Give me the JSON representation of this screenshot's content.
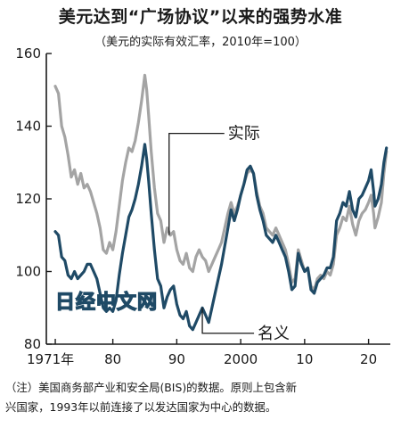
{
  "header": {
    "title": "美元达到“广场协议”以来的强势水准",
    "subtitle": "（美元的实际有效汇率，2010年=100）"
  },
  "watermark": "日经中文网",
  "note": {
    "line1": "（注）美国商务部产业和安全局(BIS)的数据。原则上包含新",
    "line2": "兴国家，1993年以前连接了以发达国家为中心的数据。"
  },
  "colors": {
    "real": "#a4a4a4",
    "nominal": "#1f4a66"
  },
  "chart_data": {
    "type": "line",
    "title": "美元达到“广场协议”以来的强势水准",
    "subtitle": "（美元的实际有效汇率，2010年=100）",
    "ylim": [
      80,
      160
    ],
    "xlim": [
      1971,
      2023
    ],
    "yticks": [
      80,
      100,
      120,
      140,
      160
    ],
    "xticks": [
      {
        "value": 1971,
        "label": "1971年"
      },
      {
        "value": 1980,
        "label": "80"
      },
      {
        "value": 1990,
        "label": "90"
      },
      {
        "value": 2000,
        "label": "2000"
      },
      {
        "value": 2010,
        "label": "10"
      },
      {
        "value": 2020,
        "label": "20"
      }
    ],
    "grid": false,
    "series": [
      {
        "name": "实际",
        "key": "real",
        "points": [
          [
            1971.0,
            151
          ],
          [
            1971.5,
            149
          ],
          [
            1972.0,
            140
          ],
          [
            1972.5,
            137
          ],
          [
            1973.0,
            132
          ],
          [
            1973.5,
            126
          ],
          [
            1974.0,
            128
          ],
          [
            1974.5,
            124
          ],
          [
            1975.0,
            127
          ],
          [
            1975.5,
            123
          ],
          [
            1976.0,
            124
          ],
          [
            1976.5,
            122
          ],
          [
            1977.0,
            119
          ],
          [
            1977.5,
            116
          ],
          [
            1978.0,
            112
          ],
          [
            1978.5,
            106
          ],
          [
            1979.0,
            105
          ],
          [
            1979.5,
            108
          ],
          [
            1980.0,
            106
          ],
          [
            1980.5,
            111
          ],
          [
            1981.0,
            118
          ],
          [
            1981.5,
            125
          ],
          [
            1982.0,
            130
          ],
          [
            1982.5,
            134
          ],
          [
            1983.0,
            133
          ],
          [
            1983.5,
            136
          ],
          [
            1984.0,
            141
          ],
          [
            1984.5,
            147
          ],
          [
            1985.0,
            154
          ],
          [
            1985.3,
            150
          ],
          [
            1985.6,
            143
          ],
          [
            1986.0,
            133
          ],
          [
            1986.5,
            123
          ],
          [
            1987.0,
            116
          ],
          [
            1987.5,
            114
          ],
          [
            1988.0,
            108
          ],
          [
            1988.5,
            112
          ],
          [
            1989.0,
            110
          ],
          [
            1989.5,
            111
          ],
          [
            1990.0,
            106
          ],
          [
            1990.5,
            103
          ],
          [
            1991.0,
            102
          ],
          [
            1991.5,
            105
          ],
          [
            1992.0,
            101
          ],
          [
            1992.5,
            100
          ],
          [
            1993.0,
            104
          ],
          [
            1993.5,
            106
          ],
          [
            1994.0,
            104
          ],
          [
            1994.5,
            103
          ],
          [
            1995.0,
            100
          ],
          [
            1995.5,
            102
          ],
          [
            1996.0,
            104
          ],
          [
            1996.5,
            106
          ],
          [
            1997.0,
            108
          ],
          [
            1997.5,
            112
          ],
          [
            1998.0,
            116
          ],
          [
            1998.5,
            119
          ],
          [
            1999.0,
            116
          ],
          [
            1999.5,
            118
          ],
          [
            2000.0,
            121
          ],
          [
            2000.5,
            124
          ],
          [
            2001.0,
            127
          ],
          [
            2001.5,
            128
          ],
          [
            2002.0,
            127
          ],
          [
            2002.5,
            122
          ],
          [
            2003.0,
            118
          ],
          [
            2003.5,
            116
          ],
          [
            2004.0,
            112
          ],
          [
            2004.5,
            111
          ],
          [
            2005.0,
            110
          ],
          [
            2005.5,
            112
          ],
          [
            2006.0,
            110
          ],
          [
            2006.5,
            108
          ],
          [
            2007.0,
            106
          ],
          [
            2007.5,
            102
          ],
          [
            2008.0,
            97
          ],
          [
            2008.5,
            98
          ],
          [
            2009.0,
            106
          ],
          [
            2009.5,
            103
          ],
          [
            2010.0,
            100
          ],
          [
            2010.5,
            101
          ],
          [
            2011.0,
            96
          ],
          [
            2011.5,
            95
          ],
          [
            2012.0,
            98
          ],
          [
            2012.5,
            99
          ],
          [
            2013.0,
            98
          ],
          [
            2013.5,
            100
          ],
          [
            2014.0,
            99
          ],
          [
            2014.5,
            102
          ],
          [
            2015.0,
            110
          ],
          [
            2015.5,
            112
          ],
          [
            2016.0,
            115
          ],
          [
            2016.5,
            114
          ],
          [
            2017.0,
            118
          ],
          [
            2017.5,
            113
          ],
          [
            2018.0,
            110
          ],
          [
            2018.5,
            114
          ],
          [
            2019.0,
            116
          ],
          [
            2019.5,
            117
          ],
          [
            2020.0,
            119
          ],
          [
            2020.4,
            121
          ],
          [
            2020.8,
            116
          ],
          [
            2021.0,
            112
          ],
          [
            2021.5,
            115
          ],
          [
            2022.0,
            119
          ],
          [
            2022.4,
            127
          ],
          [
            2022.8,
            133
          ]
        ]
      },
      {
        "name": "名义",
        "key": "nominal",
        "points": [
          [
            1971.0,
            111
          ],
          [
            1971.5,
            110
          ],
          [
            1972.0,
            104
          ],
          [
            1972.5,
            103
          ],
          [
            1973.0,
            99
          ],
          [
            1973.5,
            98
          ],
          [
            1974.0,
            100
          ],
          [
            1974.5,
            98
          ],
          [
            1975.0,
            99
          ],
          [
            1975.5,
            100
          ],
          [
            1976.0,
            102
          ],
          [
            1976.5,
            102
          ],
          [
            1977.0,
            100
          ],
          [
            1977.5,
            98
          ],
          [
            1978.0,
            94
          ],
          [
            1978.5,
            90
          ],
          [
            1979.0,
            89
          ],
          [
            1979.5,
            90
          ],
          [
            1980.0,
            89
          ],
          [
            1980.5,
            92
          ],
          [
            1981.0,
            99
          ],
          [
            1981.5,
            105
          ],
          [
            1982.0,
            110
          ],
          [
            1982.5,
            115
          ],
          [
            1983.0,
            117
          ],
          [
            1983.5,
            120
          ],
          [
            1984.0,
            124
          ],
          [
            1984.5,
            129
          ],
          [
            1985.0,
            135
          ],
          [
            1985.3,
            131
          ],
          [
            1985.6,
            125
          ],
          [
            1986.0,
            116
          ],
          [
            1986.5,
            106
          ],
          [
            1987.0,
            98
          ],
          [
            1987.5,
            96
          ],
          [
            1988.0,
            90
          ],
          [
            1988.5,
            93
          ],
          [
            1989.0,
            95
          ],
          [
            1989.5,
            96
          ],
          [
            1990.0,
            91
          ],
          [
            1990.5,
            88
          ],
          [
            1991.0,
            87
          ],
          [
            1991.5,
            89
          ],
          [
            1992.0,
            85
          ],
          [
            1992.5,
            84
          ],
          [
            1993.0,
            86
          ],
          [
            1993.5,
            88
          ],
          [
            1994.0,
            90
          ],
          [
            1994.5,
            88
          ],
          [
            1995.0,
            86
          ],
          [
            1995.5,
            90
          ],
          [
            1996.0,
            94
          ],
          [
            1996.5,
            98
          ],
          [
            1997.0,
            102
          ],
          [
            1997.5,
            107
          ],
          [
            1998.0,
            112
          ],
          [
            1998.5,
            117
          ],
          [
            1999.0,
            114
          ],
          [
            1999.5,
            117
          ],
          [
            2000.0,
            121
          ],
          [
            2000.5,
            124
          ],
          [
            2001.0,
            128
          ],
          [
            2001.5,
            129
          ],
          [
            2002.0,
            127
          ],
          [
            2002.5,
            121
          ],
          [
            2003.0,
            117
          ],
          [
            2003.5,
            114
          ],
          [
            2004.0,
            110
          ],
          [
            2004.5,
            109
          ],
          [
            2005.0,
            108
          ],
          [
            2005.5,
            110
          ],
          [
            2006.0,
            108
          ],
          [
            2006.5,
            106
          ],
          [
            2007.0,
            104
          ],
          [
            2007.5,
            100
          ],
          [
            2008.0,
            95
          ],
          [
            2008.5,
            96
          ],
          [
            2009.0,
            105
          ],
          [
            2009.5,
            102
          ],
          [
            2010.0,
            100
          ],
          [
            2010.5,
            101
          ],
          [
            2011.0,
            95
          ],
          [
            2011.5,
            94
          ],
          [
            2012.0,
            97
          ],
          [
            2012.5,
            98
          ],
          [
            2013.0,
            99
          ],
          [
            2013.5,
            101
          ],
          [
            2014.0,
            101
          ],
          [
            2014.5,
            104
          ],
          [
            2015.0,
            114
          ],
          [
            2015.5,
            116
          ],
          [
            2016.0,
            119
          ],
          [
            2016.5,
            118
          ],
          [
            2017.0,
            122
          ],
          [
            2017.5,
            117
          ],
          [
            2018.0,
            115
          ],
          [
            2018.5,
            120
          ],
          [
            2019.0,
            121
          ],
          [
            2019.5,
            123
          ],
          [
            2020.0,
            125
          ],
          [
            2020.4,
            128
          ],
          [
            2020.8,
            122
          ],
          [
            2021.0,
            118
          ],
          [
            2021.5,
            120
          ],
          [
            2022.0,
            124
          ],
          [
            2022.4,
            130
          ],
          [
            2022.8,
            134
          ]
        ]
      }
    ],
    "annotations": [
      {
        "label": "实际",
        "series": "real"
      },
      {
        "label": "名义",
        "series": "nominal"
      }
    ]
  }
}
